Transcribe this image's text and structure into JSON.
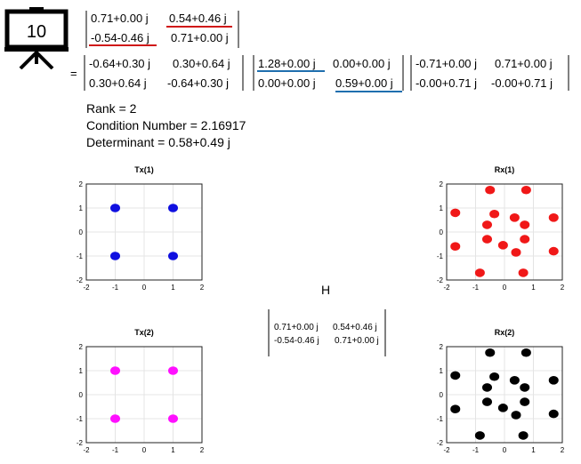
{
  "badge": {
    "number": "10"
  },
  "equation": {
    "top_matrix": [
      [
        "0.71+0.00 j",
        "0.54+0.46 j"
      ],
      [
        "-0.54-0.46 j",
        "0.71+0.00 j"
      ]
    ],
    "equals": "=",
    "u_matrix": [
      [
        "-0.64+0.30 j",
        "0.30+0.64 j"
      ],
      [
        "0.30+0.64 j",
        "-0.64+0.30 j"
      ]
    ],
    "s_matrix": [
      [
        "1.28+0.00 j",
        "0.00+0.00 j"
      ],
      [
        "0.00+0.00 j",
        "0.59+0.00 j"
      ]
    ],
    "v_matrix": [
      [
        "-0.71+0.00 j",
        "0.71+0.00 j"
      ],
      [
        "-0.00+0.71 j",
        "-0.00+0.71 j"
      ]
    ],
    "underline_colors": {
      "red": "#d01818",
      "blue": "#1f6fae"
    }
  },
  "stats": {
    "rank": "Rank = 2",
    "condition": "Condition Number = 2.16917",
    "determinant": "Determinant = 0.58+0.49 j"
  },
  "channel": {
    "label": "H",
    "matrix": [
      [
        "0.71+0.00 j",
        "0.54+0.46 j"
      ],
      [
        "-0.54-0.46 j",
        "0.71+0.00 j"
      ]
    ]
  },
  "plots": [
    {
      "title": "Tx(1)",
      "color": "#1010e0",
      "points": [
        [
          -1,
          1
        ],
        [
          1,
          1
        ],
        [
          -1,
          -1
        ],
        [
          1,
          -1
        ]
      ]
    },
    {
      "title": "Rx(1)",
      "color": "#f01818",
      "points": [
        [
          -0.35,
          0.75
        ],
        [
          0.35,
          0.6
        ],
        [
          0.7,
          0.3
        ],
        [
          -0.6,
          0.3
        ],
        [
          -0.6,
          -0.3
        ],
        [
          0.7,
          -0.3
        ],
        [
          -0.05,
          -0.55
        ],
        [
          0.4,
          -0.85
        ],
        [
          -0.5,
          1.75
        ],
        [
          0.75,
          1.75
        ],
        [
          -1.7,
          0.8
        ],
        [
          1.7,
          0.6
        ],
        [
          -1.7,
          -0.6
        ],
        [
          1.7,
          -0.8
        ],
        [
          -0.85,
          -1.7
        ],
        [
          0.65,
          -1.7
        ]
      ]
    },
    {
      "title": "Tx(2)",
      "color": "#ff10ff",
      "points": [
        [
          -1,
          1
        ],
        [
          1,
          1
        ],
        [
          -1,
          -1
        ],
        [
          1,
          -1
        ]
      ]
    },
    {
      "title": "Rx(2)",
      "color": "#000000",
      "points": [
        [
          -0.35,
          0.75
        ],
        [
          0.35,
          0.6
        ],
        [
          0.7,
          0.3
        ],
        [
          -0.6,
          0.3
        ],
        [
          -0.6,
          -0.3
        ],
        [
          0.7,
          -0.3
        ],
        [
          -0.05,
          -0.55
        ],
        [
          0.4,
          -0.85
        ],
        [
          -0.5,
          1.75
        ],
        [
          0.75,
          1.75
        ],
        [
          -1.7,
          0.8
        ],
        [
          1.7,
          0.6
        ],
        [
          -1.7,
          -0.6
        ],
        [
          1.7,
          -0.8
        ],
        [
          -0.85,
          -1.7
        ],
        [
          0.65,
          -1.7
        ]
      ]
    }
  ],
  "axis": {
    "ticks": [
      "-2",
      "-1",
      "0",
      "1",
      "2"
    ],
    "range": [
      -2,
      2
    ]
  }
}
